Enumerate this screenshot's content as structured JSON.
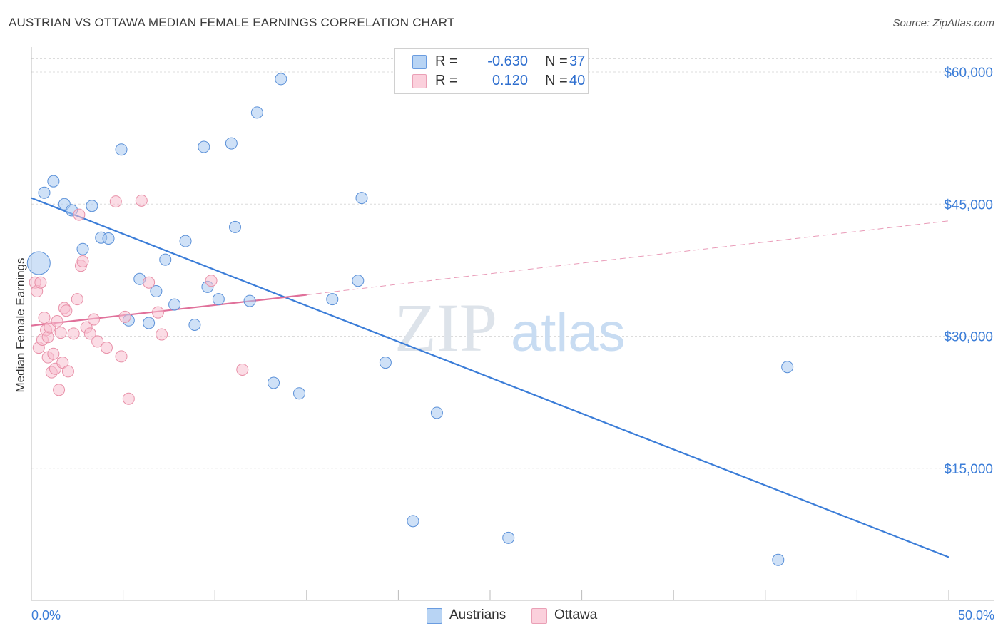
{
  "title": "AUSTRIAN VS OTTAWA MEDIAN FEMALE EARNINGS CORRELATION CHART",
  "source": "Source: ZipAtlas.com",
  "watermark": {
    "zip": "ZIP",
    "atlas": "atlas"
  },
  "legend": {
    "r_label": "R =",
    "n_label": "N =",
    "rows": [
      {
        "name": "Austrians",
        "r": "-0.630",
        "n": "37",
        "color": "#a8c8f0",
        "stroke": "#5a90d8"
      },
      {
        "name": "Ottawa",
        "r": "0.120",
        "n": "40",
        "color": "#f8c0d0",
        "stroke": "#e890a8"
      }
    ]
  },
  "chart_data": {
    "type": "scatter",
    "title": "AUSTRIAN VS OTTAWA MEDIAN FEMALE EARNINGS CORRELATION CHART",
    "xlabel": "",
    "ylabel": "Median Female Earnings",
    "xlim": [
      0,
      50
    ],
    "ylim": [
      0,
      63000
    ],
    "x_tick_labels": [
      {
        "x": 0,
        "label": "0.0%"
      },
      {
        "x": 50,
        "label": "50.0%"
      }
    ],
    "y_tick_labels": [
      {
        "y": 15000,
        "label": "$15,000"
      },
      {
        "y": 30000,
        "label": "$30,000"
      },
      {
        "y": 45000,
        "label": "$45,000"
      },
      {
        "y": 60000,
        "label": "$60,000"
      }
    ],
    "series": [
      {
        "name": "Austrians",
        "color": "#3b7dd8",
        "points": [
          {
            "x": 0.4,
            "y": 38300,
            "big": true
          },
          {
            "x": 0.7,
            "y": 46300
          },
          {
            "x": 1.2,
            "y": 47600
          },
          {
            "x": 1.8,
            "y": 45000
          },
          {
            "x": 2.2,
            "y": 44300
          },
          {
            "x": 2.8,
            "y": 39900
          },
          {
            "x": 3.3,
            "y": 44800
          },
          {
            "x": 3.8,
            "y": 41200
          },
          {
            "x": 4.2,
            "y": 41100
          },
          {
            "x": 4.9,
            "y": 51200
          },
          {
            "x": 5.3,
            "y": 31800
          },
          {
            "x": 5.9,
            "y": 36500
          },
          {
            "x": 6.4,
            "y": 31500
          },
          {
            "x": 6.8,
            "y": 35100
          },
          {
            "x": 7.3,
            "y": 38700
          },
          {
            "x": 7.8,
            "y": 33600
          },
          {
            "x": 8.4,
            "y": 40800
          },
          {
            "x": 8.9,
            "y": 31300
          },
          {
            "x": 9.4,
            "y": 51500
          },
          {
            "x": 9.6,
            "y": 35600
          },
          {
            "x": 10.2,
            "y": 34200
          },
          {
            "x": 10.9,
            "y": 51900
          },
          {
            "x": 11.1,
            "y": 42400
          },
          {
            "x": 12.3,
            "y": 55400
          },
          {
            "x": 11.9,
            "y": 34000
          },
          {
            "x": 13.6,
            "y": 59200
          },
          {
            "x": 13.2,
            "y": 24700
          },
          {
            "x": 14.6,
            "y": 23500
          },
          {
            "x": 16.4,
            "y": 34200
          },
          {
            "x": 17.8,
            "y": 36300
          },
          {
            "x": 18.0,
            "y": 45700
          },
          {
            "x": 19.3,
            "y": 27000
          },
          {
            "x": 20.8,
            "y": 9000
          },
          {
            "x": 22.1,
            "y": 21300
          },
          {
            "x": 26.0,
            "y": 7100
          },
          {
            "x": 41.2,
            "y": 26500
          },
          {
            "x": 40.7,
            "y": 4600
          }
        ],
        "trend": {
          "x0": 0,
          "y0": 45700,
          "x1": 50,
          "y1": 4900
        }
      },
      {
        "name": "Ottawa",
        "color": "#e0709a",
        "points": [
          {
            "x": 0.2,
            "y": 36100
          },
          {
            "x": 0.3,
            "y": 35100
          },
          {
            "x": 0.4,
            "y": 28700
          },
          {
            "x": 0.5,
            "y": 36100
          },
          {
            "x": 0.6,
            "y": 29600
          },
          {
            "x": 0.7,
            "y": 32100
          },
          {
            "x": 0.8,
            "y": 30700
          },
          {
            "x": 0.9,
            "y": 29900
          },
          {
            "x": 0.9,
            "y": 27600
          },
          {
            "x": 1.0,
            "y": 31000
          },
          {
            "x": 1.1,
            "y": 25900
          },
          {
            "x": 1.2,
            "y": 28000
          },
          {
            "x": 1.3,
            "y": 26300
          },
          {
            "x": 1.4,
            "y": 31700
          },
          {
            "x": 1.5,
            "y": 23900
          },
          {
            "x": 1.6,
            "y": 30400
          },
          {
            "x": 1.7,
            "y": 27000
          },
          {
            "x": 1.8,
            "y": 33200
          },
          {
            "x": 1.9,
            "y": 32900
          },
          {
            "x": 2.0,
            "y": 26000
          },
          {
            "x": 2.3,
            "y": 30300
          },
          {
            "x": 2.5,
            "y": 34200
          },
          {
            "x": 2.6,
            "y": 43800
          },
          {
            "x": 2.7,
            "y": 38000
          },
          {
            "x": 2.8,
            "y": 38500
          },
          {
            "x": 3.0,
            "y": 31000
          },
          {
            "x": 3.2,
            "y": 30300
          },
          {
            "x": 3.4,
            "y": 31900
          },
          {
            "x": 3.6,
            "y": 29400
          },
          {
            "x": 4.1,
            "y": 28700
          },
          {
            "x": 4.6,
            "y": 45300
          },
          {
            "x": 4.9,
            "y": 27700
          },
          {
            "x": 5.1,
            "y": 32200
          },
          {
            "x": 5.3,
            "y": 22900
          },
          {
            "x": 6.0,
            "y": 45400
          },
          {
            "x": 6.4,
            "y": 36100
          },
          {
            "x": 6.9,
            "y": 32700
          },
          {
            "x": 7.1,
            "y": 30200
          },
          {
            "x": 9.8,
            "y": 36300
          },
          {
            "x": 11.5,
            "y": 26200
          }
        ],
        "trend": {
          "x0": 0,
          "y0": 31200,
          "x1": 15,
          "y1": 34700
        },
        "trend_extension": {
          "x0": 15,
          "y0": 34700,
          "x1": 50,
          "y1": 43100
        }
      }
    ]
  }
}
